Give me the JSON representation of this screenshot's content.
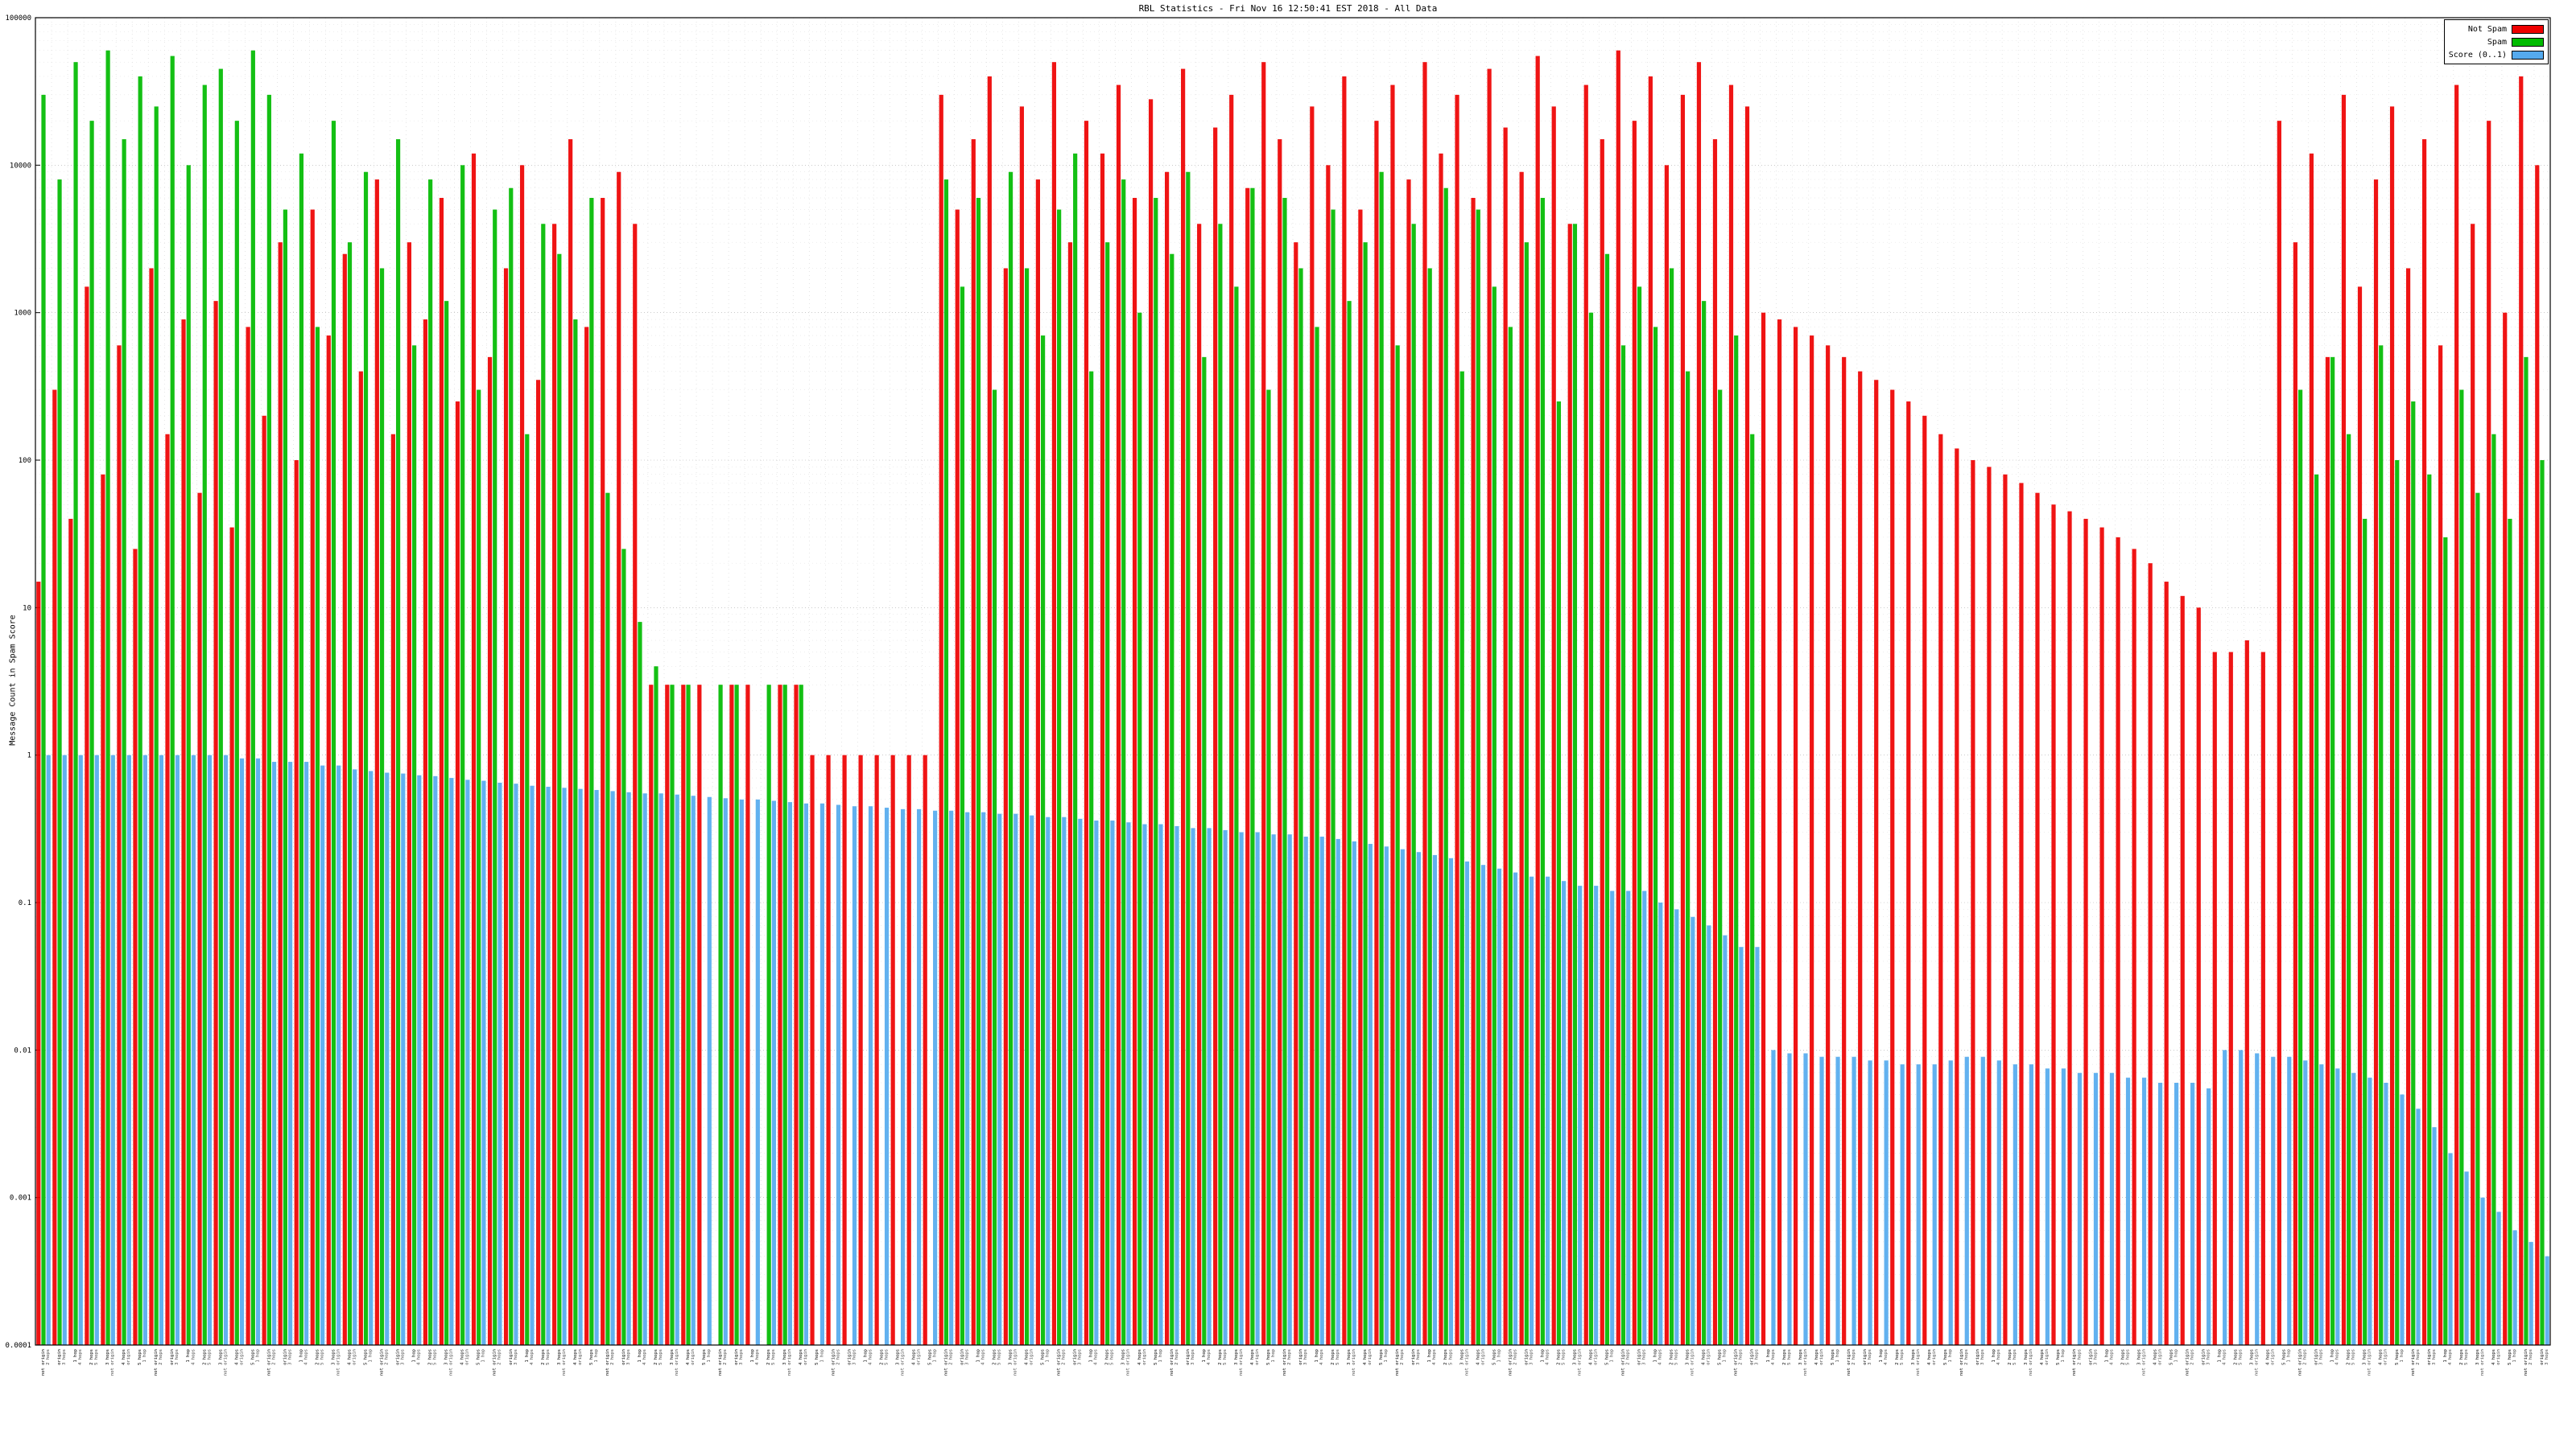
{
  "title": "RBL Statistics - Fri Nov 16 12:50:41 EST 2018 - All Data",
  "legend": {
    "items": [
      {
        "label": "Not Spam",
        "color": "#ee0000"
      },
      {
        "label": "Spam",
        "color": "#00bb00"
      },
      {
        "label": "Score (0..1)",
        "color": "#55aaee"
      }
    ]
  },
  "chart_data": {
    "type": "bar",
    "title": "RBL Statistics - Fri Nov 16 12:50:41 EST 2018 - All Data",
    "xlabel": "",
    "ylabel": "Message Count in Spam Score",
    "y_scale": "log",
    "ylim": [
      0.0001,
      100000
    ],
    "grid": true,
    "legend_position": "top-right",
    "n_bars": 156,
    "y_ticks": [
      {
        "v": 100000,
        "label": "100000"
      },
      {
        "v": 10000,
        "label": "10000"
      },
      {
        "v": 1000,
        "label": "1000"
      },
      {
        "v": 100,
        "label": "100"
      },
      {
        "v": 10,
        "label": "10"
      },
      {
        "v": 1,
        "label": "1"
      },
      {
        "v": 0.1,
        "label": "0.1"
      },
      {
        "v": 0.01,
        "label": "0.01"
      },
      {
        "v": 0.001,
        "label": "0.001"
      },
      {
        "v": 0.0001,
        "label": "0.0001"
      }
    ],
    "x_tick_labels_sample": [
      "not origin",
      "origin",
      "1 hop",
      "2 hops",
      "3 hops",
      "4 hops",
      "5 hops"
    ],
    "series": [
      {
        "name": "Not Spam",
        "color": "#ee0000",
        "values": [
          15,
          300,
          40,
          1500,
          80,
          600,
          25,
          2000,
          150,
          900,
          60,
          1200,
          35,
          800,
          200,
          3000,
          100,
          5000,
          700,
          2500,
          400,
          8000,
          150,
          3000,
          900,
          6000,
          250,
          12000,
          500,
          2000,
          10000,
          350,
          4000,
          15000,
          800,
          6000,
          9000,
          4000,
          3,
          3,
          3,
          3,
          0,
          3,
          3,
          0,
          3,
          3,
          1,
          1,
          1,
          1,
          1,
          1,
          1,
          1,
          30000,
          5000,
          15000,
          40000,
          2000,
          25000,
          8000,
          50000,
          3000,
          20000,
          12000,
          35000,
          6000,
          28000,
          9000,
          45000,
          4000,
          18000,
          30000,
          7000,
          50000,
          15000,
          3000,
          25000,
          10000,
          40000,
          5000,
          20000,
          35000,
          8000,
          50000,
          12000,
          30000,
          6000,
          45000,
          18000,
          9000,
          55000,
          25000,
          4000,
          35000,
          15000,
          60000,
          20000,
          40000,
          10000,
          30000,
          50000,
          15000,
          35000,
          25000,
          1000,
          900,
          800,
          700,
          600,
          500,
          400,
          350,
          300,
          250,
          200,
          150,
          120,
          100,
          90,
          80,
          70,
          60,
          50,
          45,
          40,
          35,
          30,
          25,
          20,
          15,
          12,
          10,
          5,
          5,
          6,
          5,
          20000,
          3000,
          12000,
          500,
          30000,
          1500,
          8000,
          25000,
          2000,
          15000,
          600,
          35000,
          4000,
          20000,
          1000,
          40000,
          10000
        ]
      },
      {
        "name": "Spam",
        "color": "#00bb00",
        "values": [
          30000,
          8000,
          50000,
          20000,
          60000,
          15000,
          40000,
          25000,
          55000,
          10000,
          35000,
          45000,
          20000,
          60000,
          30000,
          5000,
          12000,
          800,
          20000,
          3000,
          9000,
          2000,
          15000,
          600,
          8000,
          1200,
          10000,
          300,
          5000,
          7000,
          150,
          4000,
          2500,
          900,
          6000,
          60,
          25,
          8,
          4,
          3,
          3,
          0,
          3,
          3,
          0,
          3,
          3,
          3,
          0,
          0,
          0,
          0,
          0,
          0,
          0,
          0,
          8000,
          1500,
          6000,
          300,
          9000,
          2000,
          700,
          5000,
          12000,
          400,
          3000,
          8000,
          1000,
          6000,
          2500,
          9000,
          500,
          4000,
          1500,
          7000,
          300,
          6000,
          2000,
          800,
          5000,
          1200,
          3000,
          9000,
          600,
          4000,
          2000,
          7000,
          400,
          5000,
          1500,
          800,
          3000,
          6000,
          250,
          4000,
          1000,
          2500,
          600,
          1500,
          800,
          2000,
          400,
          1200,
          300,
          700,
          150,
          0,
          0,
          0,
          0,
          0,
          0,
          0,
          0,
          0,
          0,
          0,
          0,
          0,
          0,
          0,
          0,
          0,
          0,
          0,
          0,
          0,
          0,
          0,
          0,
          0,
          0,
          0,
          0,
          0,
          0,
          0,
          0,
          0,
          300,
          80,
          500,
          150,
          40,
          600,
          100,
          250,
          80,
          30,
          300,
          60,
          150,
          40,
          500,
          100
        ]
      },
      {
        "name": "Score (0..1)",
        "color": "#55aaee",
        "values": [
          1,
          1,
          1,
          1,
          1,
          1,
          1,
          1,
          1,
          1,
          1,
          1,
          0.95,
          0.95,
          0.9,
          0.9,
          0.9,
          0.85,
          0.85,
          0.8,
          0.78,
          0.76,
          0.75,
          0.73,
          0.72,
          0.7,
          0.68,
          0.67,
          0.65,
          0.64,
          0.62,
          0.61,
          0.6,
          0.59,
          0.58,
          0.57,
          0.56,
          0.55,
          0.55,
          0.54,
          0.53,
          0.52,
          0.51,
          0.5,
          0.5,
          0.49,
          0.48,
          0.47,
          0.47,
          0.46,
          0.45,
          0.45,
          0.44,
          0.43,
          0.43,
          0.42,
          0.42,
          0.41,
          0.41,
          0.4,
          0.4,
          0.39,
          0.38,
          0.38,
          0.37,
          0.36,
          0.36,
          0.35,
          0.34,
          0.34,
          0.33,
          0.32,
          0.32,
          0.31,
          0.3,
          0.3,
          0.29,
          0.29,
          0.28,
          0.28,
          0.27,
          0.26,
          0.25,
          0.24,
          0.23,
          0.22,
          0.21,
          0.2,
          0.19,
          0.18,
          0.17,
          0.16,
          0.15,
          0.15,
          0.14,
          0.13,
          0.13,
          0.12,
          0.12,
          0.12,
          0.1,
          0.09,
          0.08,
          0.07,
          0.06,
          0.05,
          0.05,
          0.01,
          0.0095,
          0.0095,
          0.009,
          0.009,
          0.009,
          0.0085,
          0.0085,
          0.008,
          0.008,
          0.008,
          0.0085,
          0.009,
          0.009,
          0.0085,
          0.008,
          0.008,
          0.0075,
          0.0075,
          0.007,
          0.007,
          0.007,
          0.0065,
          0.0065,
          0.006,
          0.006,
          0.006,
          0.0055,
          0.01,
          0.01,
          0.0095,
          0.009,
          0.009,
          0.0085,
          0.008,
          0.0075,
          0.007,
          0.0065,
          0.006,
          0.005,
          0.004,
          0.003,
          0.002,
          0.0015,
          0.001,
          0.0008,
          0.0006,
          0.0005,
          0.0004
        ]
      }
    ]
  }
}
